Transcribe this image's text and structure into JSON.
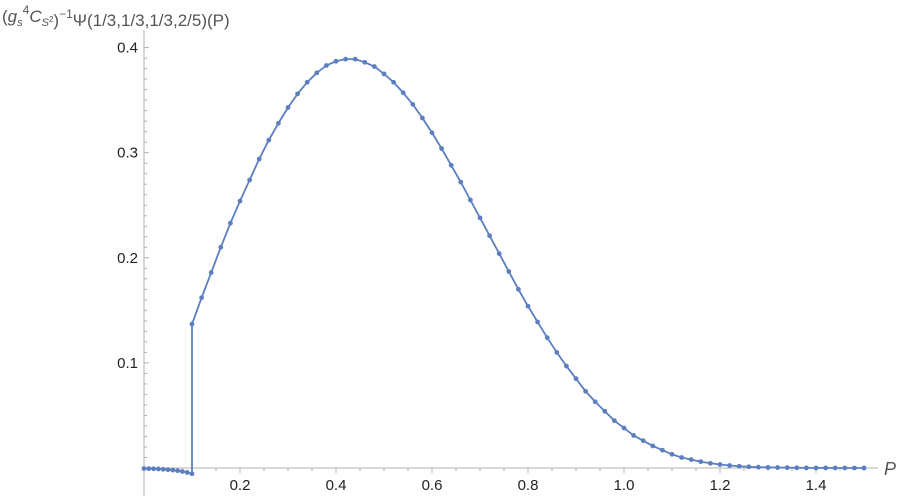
{
  "chart_data": {
    "type": "line",
    "ylabel": {
      "g": "g",
      "s": "s",
      "four": "4",
      "C": "C",
      "S": "S",
      "two": "2",
      "inv": "−1",
      "rest": "Ψ(1/3,1/3,1/3,2/5)(P)"
    },
    "xlabel": "P",
    "xlim": [
      0,
      1.55
    ],
    "ylim": [
      -0.01,
      0.41
    ],
    "x_ticks": [
      0.2,
      0.4,
      0.6,
      0.8,
      1.0,
      1.2,
      1.4
    ],
    "x_tick_labels": [
      "0.2",
      "0.4",
      "0.6",
      "0.8",
      "1.0",
      "1.2",
      "1.4"
    ],
    "y_ticks": [
      0.1,
      0.2,
      0.3,
      0.4
    ],
    "y_tick_labels": [
      "0.1",
      "0.2",
      "0.3",
      "0.4"
    ],
    "grid": false,
    "series_color": "#5b7fbf",
    "series": [
      {
        "x": [
          0.0,
          0.01,
          0.02,
          0.03,
          0.04,
          0.05,
          0.06,
          0.07,
          0.08,
          0.09,
          0.1,
          0.1,
          0.12,
          0.14,
          0.16,
          0.18,
          0.2,
          0.22,
          0.24,
          0.26,
          0.28,
          0.3,
          0.32,
          0.34,
          0.36,
          0.38,
          0.4,
          0.42,
          0.44,
          0.46,
          0.48,
          0.5,
          0.52,
          0.54,
          0.56,
          0.58,
          0.6,
          0.62,
          0.64,
          0.66,
          0.68,
          0.7,
          0.72,
          0.74,
          0.76,
          0.78,
          0.8,
          0.82,
          0.84,
          0.86,
          0.88,
          0.9,
          0.92,
          0.94,
          0.96,
          0.98,
          1.0,
          1.02,
          1.04,
          1.06,
          1.08,
          1.1,
          1.12,
          1.14,
          1.16,
          1.18,
          1.2,
          1.22,
          1.24,
          1.26,
          1.28,
          1.3,
          1.32,
          1.34,
          1.36,
          1.38,
          1.4,
          1.42,
          1.44,
          1.46,
          1.48,
          1.5
        ],
        "y": [
          -0.0005,
          -0.0006,
          -0.0007,
          -0.0009,
          -0.0012,
          -0.0016,
          -0.002,
          -0.0026,
          -0.0033,
          -0.0042,
          -0.0055,
          0.137,
          0.162,
          0.186,
          0.21,
          0.233,
          0.254,
          0.274,
          0.294,
          0.312,
          0.328,
          0.343,
          0.356,
          0.367,
          0.376,
          0.383,
          0.387,
          0.389,
          0.389,
          0.386,
          0.382,
          0.375,
          0.367,
          0.357,
          0.346,
          0.333,
          0.319,
          0.304,
          0.288,
          0.272,
          0.255,
          0.238,
          0.221,
          0.204,
          0.187,
          0.17,
          0.154,
          0.139,
          0.124,
          0.11,
          0.097,
          0.085,
          0.073,
          0.063,
          0.054,
          0.045,
          0.038,
          0.031,
          0.026,
          0.021,
          0.017,
          0.013,
          0.01,
          0.008,
          0.006,
          0.0045,
          0.0033,
          0.0024,
          0.0017,
          0.0012,
          0.0008,
          0.0006,
          0.0004,
          0.0003,
          0.0002,
          0.0001,
          0.0001,
          5e-05,
          3e-05,
          2e-05,
          1e-05,
          0.0
        ]
      }
    ]
  }
}
